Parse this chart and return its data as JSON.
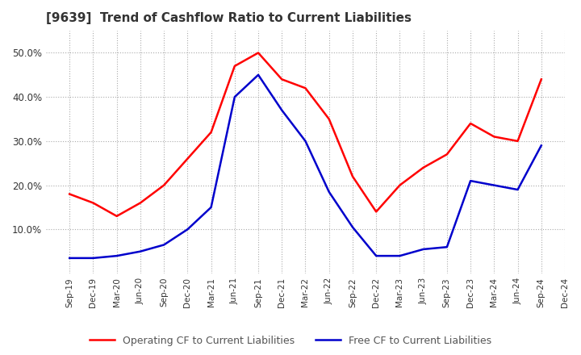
{
  "title": "[9639]  Trend of Cashflow Ratio to Current Liabilities",
  "x_labels": [
    "Sep-19",
    "Dec-19",
    "Mar-20",
    "Jun-20",
    "Sep-20",
    "Dec-20",
    "Mar-21",
    "Jun-21",
    "Sep-21",
    "Dec-21",
    "Mar-22",
    "Jun-22",
    "Sep-22",
    "Dec-22",
    "Mar-23",
    "Jun-23",
    "Sep-23",
    "Dec-23",
    "Mar-24",
    "Jun-24",
    "Sep-24",
    "Dec-24"
  ],
  "operating_cf": [
    0.18,
    0.16,
    0.13,
    0.16,
    0.2,
    0.26,
    0.32,
    0.47,
    0.5,
    0.44,
    0.42,
    0.35,
    0.22,
    0.14,
    0.2,
    0.24,
    0.27,
    0.34,
    0.31,
    0.3,
    0.44,
    null
  ],
  "free_cf": [
    0.035,
    0.035,
    0.04,
    0.05,
    0.065,
    0.1,
    0.15,
    0.4,
    0.45,
    0.37,
    0.3,
    0.185,
    0.105,
    0.04,
    0.04,
    0.055,
    0.06,
    0.21,
    0.2,
    0.19,
    0.29,
    null
  ],
  "operating_color": "#ff0000",
  "free_color": "#0000cc",
  "ylim_min": 0.0,
  "ylim_max": 0.55,
  "yticks": [
    0.1,
    0.2,
    0.3,
    0.4,
    0.5
  ],
  "legend_operating": "Operating CF to Current Liabilities",
  "legend_free": "Free CF to Current Liabilities",
  "background_color": "#ffffff",
  "grid_color": "#aaaaaa"
}
